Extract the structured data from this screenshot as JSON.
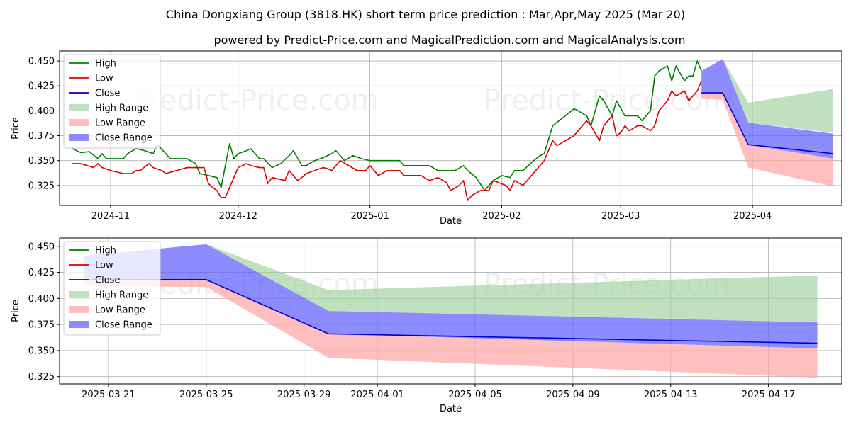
{
  "colors": {
    "high": "#008000",
    "low": "#e00000",
    "close": "#0000cc",
    "high_range": "#a4d4a4",
    "low_range": "#ffaaaa",
    "close_range": "#6666ff",
    "grid": "#b0b0b0"
  },
  "chart_data": [
    {
      "type": "line",
      "title": "China Dongxiang Group (3818.HK) short term price prediction : Mar,Apr,May 2025 (Mar 20)",
      "subtitle": "powered by Predict-Price.com and MagicalPrediction.com and MagicalAnalysis.com",
      "watermark": "Predict-Price.com",
      "xlabel": "Date",
      "ylabel": "Price",
      "xlim": [
        "2024-10-20",
        "2025-04-22"
      ],
      "ylim": [
        0.305,
        0.46
      ],
      "y_ticks": [
        "0.325",
        "0.350",
        "0.375",
        "0.400",
        "0.425",
        "0.450"
      ],
      "x_ticks": [
        "2024-11",
        "2024-12",
        "2025-01",
        "2025-02",
        "2025-03",
        "2025-04"
      ],
      "grid": true,
      "legend_position": "top-left",
      "legend": [
        "High",
        "Low",
        "Close",
        "High Range",
        "Low Range",
        "Close Range"
      ],
      "series": [
        {
          "name": "High",
          "x": [
            "2024-10-23",
            "2024-10-25",
            "2024-10-27",
            "2024-10-29",
            "2024-10-30",
            "2024-10-31",
            "2024-11-01",
            "2024-11-04",
            "2024-11-05",
            "2024-11-07",
            "2024-11-09",
            "2024-11-11",
            "2024-11-12",
            "2024-11-14",
            "2024-11-15",
            "2024-11-17",
            "2024-11-19",
            "2024-11-21",
            "2024-11-22",
            "2024-11-24",
            "2024-11-26",
            "2024-11-27",
            "2024-11-29",
            "2024-11-30",
            "2024-12-01",
            "2024-12-03",
            "2024-12-04",
            "2024-12-06",
            "2024-12-07",
            "2024-12-09",
            "2024-12-11",
            "2024-12-13",
            "2024-12-14",
            "2024-12-16",
            "2024-12-17",
            "2024-12-19",
            "2024-12-21",
            "2024-12-23",
            "2024-12-24",
            "2024-12-26",
            "2024-12-28",
            "2024-12-30",
            "2025-01-01",
            "2025-01-03",
            "2025-01-05",
            "2025-01-07",
            "2025-01-08",
            "2025-01-09",
            "2025-01-11",
            "2025-01-13",
            "2025-01-15",
            "2025-01-17",
            "2025-01-19",
            "2025-01-21",
            "2025-01-23",
            "2025-01-24",
            "2025-01-26",
            "2025-01-28",
            "2025-01-30",
            "2025-02-01",
            "2025-02-03",
            "2025-02-04",
            "2025-02-06",
            "2025-02-08",
            "2025-02-10",
            "2025-02-11",
            "2025-02-13",
            "2025-02-16",
            "2025-02-18",
            "2025-02-19",
            "2025-02-21",
            "2025-02-22",
            "2025-02-24",
            "2025-02-25",
            "2025-02-27",
            "2025-02-28",
            "2025-03-02",
            "2025-03-03",
            "2025-03-05",
            "2025-03-06",
            "2025-03-08",
            "2025-03-09",
            "2025-03-10",
            "2025-03-12",
            "2025-03-13",
            "2025-03-14",
            "2025-03-16",
            "2025-03-17",
            "2025-03-18",
            "2025-03-19",
            "2025-03-20"
          ],
          "values": [
            0.362,
            0.358,
            0.359,
            0.352,
            0.357,
            0.352,
            0.352,
            0.352,
            0.357,
            0.362,
            0.36,
            0.357,
            0.366,
            0.357,
            0.352,
            0.352,
            0.352,
            0.347,
            0.337,
            0.335,
            0.333,
            0.323,
            0.367,
            0.352,
            0.357,
            0.36,
            0.362,
            0.352,
            0.352,
            0.343,
            0.347,
            0.355,
            0.36,
            0.345,
            0.345,
            0.35,
            0.353,
            0.357,
            0.36,
            0.35,
            0.355,
            0.352,
            0.35,
            0.35,
            0.35,
            0.35,
            0.35,
            0.345,
            0.345,
            0.345,
            0.345,
            0.34,
            0.34,
            0.34,
            0.345,
            0.34,
            0.333,
            0.32,
            0.33,
            0.335,
            0.333,
            0.34,
            0.34,
            0.348,
            0.355,
            0.357,
            0.385,
            0.395,
            0.402,
            0.4,
            0.395,
            0.385,
            0.415,
            0.41,
            0.395,
            0.41,
            0.395,
            0.395,
            0.395,
            0.39,
            0.4,
            0.435,
            0.44,
            0.445,
            0.43,
            0.445,
            0.43,
            0.435,
            0.435,
            0.45,
            0.44
          ]
        },
        {
          "name": "Low",
          "x": [
            "2024-10-23",
            "2024-10-25",
            "2024-10-28",
            "2024-10-29",
            "2024-10-30",
            "2024-11-01",
            "2024-11-04",
            "2024-11-06",
            "2024-11-07",
            "2024-11-08",
            "2024-11-10",
            "2024-11-11",
            "2024-11-13",
            "2024-11-14",
            "2024-11-19",
            "2024-11-20",
            "2024-11-21",
            "2024-11-23",
            "2024-11-24",
            "2024-11-25",
            "2024-11-26",
            "2024-11-27",
            "2024-11-28",
            "2024-12-01",
            "2024-12-03",
            "2024-12-04",
            "2024-12-06",
            "2024-12-07",
            "2024-12-08",
            "2024-12-09",
            "2024-12-12",
            "2024-12-13",
            "2024-12-15",
            "2024-12-16",
            "2024-12-17",
            "2024-12-19",
            "2024-12-21",
            "2024-12-22",
            "2024-12-23",
            "2024-12-25",
            "2024-12-27",
            "2024-12-29",
            "2024-12-31",
            "2025-01-01",
            "2025-01-03",
            "2025-01-05",
            "2025-01-07",
            "2025-01-08",
            "2025-01-09",
            "2025-01-11",
            "2025-01-13",
            "2025-01-15",
            "2025-01-17",
            "2025-01-19",
            "2025-01-20",
            "2025-01-22",
            "2025-01-23",
            "2025-01-24",
            "2025-01-25",
            "2025-01-27",
            "2025-01-29",
            "2025-01-30",
            "2025-02-02",
            "2025-02-03",
            "2025-02-04",
            "2025-02-06",
            "2025-02-08",
            "2025-02-10",
            "2025-02-11",
            "2025-02-13",
            "2025-02-14",
            "2025-02-16",
            "2025-02-18",
            "2025-02-19",
            "2025-02-21",
            "2025-02-22",
            "2025-02-24",
            "2025-02-25",
            "2025-02-27",
            "2025-02-28",
            "2025-03-01",
            "2025-03-02",
            "2025-03-03",
            "2025-03-05",
            "2025-03-06",
            "2025-03-08",
            "2025-03-09",
            "2025-03-10",
            "2025-03-12",
            "2025-03-13",
            "2025-03-14",
            "2025-03-16",
            "2025-03-17",
            "2025-03-18",
            "2025-03-19",
            "2025-03-20"
          ],
          "values": [
            0.347,
            0.347,
            0.343,
            0.347,
            0.343,
            0.34,
            0.337,
            0.337,
            0.34,
            0.34,
            0.347,
            0.343,
            0.34,
            0.337,
            0.343,
            0.343,
            0.343,
            0.343,
            0.327,
            0.323,
            0.32,
            0.313,
            0.313,
            0.343,
            0.347,
            0.345,
            0.343,
            0.343,
            0.327,
            0.333,
            0.33,
            0.34,
            0.33,
            0.333,
            0.337,
            0.34,
            0.343,
            0.342,
            0.34,
            0.35,
            0.345,
            0.34,
            0.34,
            0.345,
            0.335,
            0.34,
            0.34,
            0.34,
            0.335,
            0.335,
            0.335,
            0.33,
            0.333,
            0.328,
            0.32,
            0.325,
            0.33,
            0.31,
            0.315,
            0.32,
            0.32,
            0.33,
            0.325,
            0.32,
            0.33,
            0.325,
            0.335,
            0.345,
            0.35,
            0.37,
            0.365,
            0.37,
            0.375,
            0.38,
            0.39,
            0.385,
            0.37,
            0.385,
            0.395,
            0.375,
            0.378,
            0.385,
            0.38,
            0.385,
            0.385,
            0.38,
            0.385,
            0.4,
            0.41,
            0.42,
            0.415,
            0.42,
            0.41,
            0.415,
            0.42,
            0.43
          ]
        },
        {
          "name": "Close",
          "x": [
            "2025-03-20",
            "2025-03-25",
            "2025-03-31",
            "2025-04-20"
          ],
          "values": [
            0.418,
            0.418,
            0.366,
            0.357
          ]
        },
        {
          "name": "High Range",
          "x": [
            "2025-03-20",
            "2025-03-25",
            "2025-03-31",
            "2025-04-20"
          ],
          "upper": [
            0.44,
            0.452,
            0.408,
            0.422
          ],
          "lower": [
            0.44,
            0.452,
            0.388,
            0.378
          ]
        },
        {
          "name": "Low Range",
          "x": [
            "2025-03-20",
            "2025-03-25",
            "2025-03-31",
            "2025-04-20"
          ],
          "upper": [
            0.418,
            0.418,
            0.366,
            0.352
          ],
          "lower": [
            0.412,
            0.411,
            0.343,
            0.324
          ]
        },
        {
          "name": "Close Range",
          "x": [
            "2025-03-20",
            "2025-03-25",
            "2025-03-31",
            "2025-04-20"
          ],
          "upper": [
            0.44,
            0.452,
            0.388,
            0.377
          ],
          "lower": [
            0.418,
            0.418,
            0.366,
            0.352
          ]
        }
      ]
    },
    {
      "type": "line",
      "xlabel": "Date",
      "ylabel": "Price",
      "xlim": [
        "2025-03-19",
        "2025-04-20"
      ],
      "ylim": [
        0.318,
        0.458
      ],
      "y_ticks": [
        "0.325",
        "0.350",
        "0.375",
        "0.400",
        "0.425",
        "0.450"
      ],
      "x_ticks": [
        "2025-03-21",
        "2025-03-25",
        "2025-03-29",
        "2025-04-01",
        "2025-04-05",
        "2025-04-09",
        "2025-04-13",
        "2025-04-17"
      ],
      "grid": true,
      "legend_position": "top-left",
      "legend": [
        "High",
        "Low",
        "Close",
        "High Range",
        "Low Range",
        "Close Range"
      ],
      "series": [
        {
          "name": "Close",
          "x": [
            "2025-03-20",
            "2025-03-25",
            "2025-03-30",
            "2025-04-19"
          ],
          "values": [
            0.418,
            0.418,
            0.366,
            0.357
          ]
        },
        {
          "name": "High Range",
          "x": [
            "2025-03-20",
            "2025-03-25",
            "2025-03-30",
            "2025-04-19"
          ],
          "upper": [
            0.441,
            0.452,
            0.408,
            0.422
          ],
          "lower": [
            0.441,
            0.452,
            0.388,
            0.377
          ]
        },
        {
          "name": "Low Range",
          "x": [
            "2025-03-20",
            "2025-03-25",
            "2025-03-30",
            "2025-04-19"
          ],
          "upper": [
            0.418,
            0.418,
            0.366,
            0.352
          ],
          "lower": [
            0.412,
            0.411,
            0.343,
            0.324
          ]
        },
        {
          "name": "Close Range",
          "x": [
            "2025-03-20",
            "2025-03-25",
            "2025-03-30",
            "2025-04-19"
          ],
          "upper": [
            0.441,
            0.452,
            0.388,
            0.377
          ],
          "lower": [
            0.418,
            0.418,
            0.366,
            0.352
          ]
        }
      ]
    }
  ]
}
